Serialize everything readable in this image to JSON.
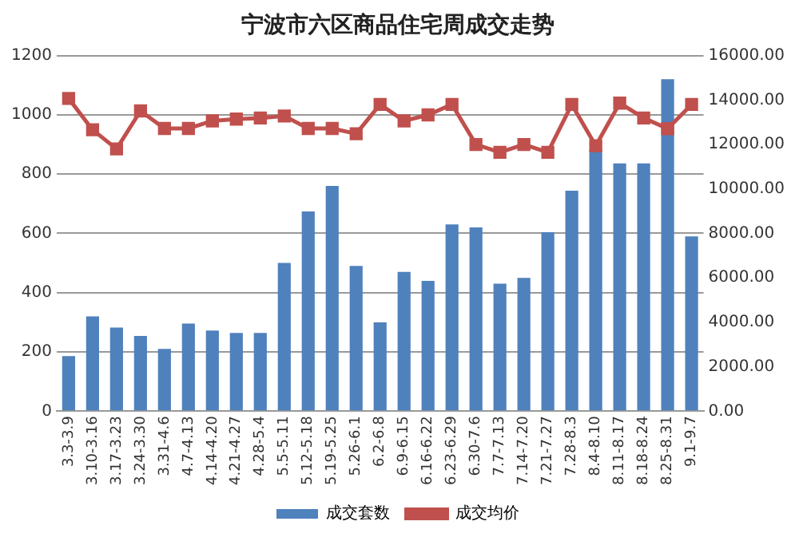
{
  "chart_data": {
    "type": "bar",
    "title": "宁波市六区商品住宅周成交走势",
    "categories": [
      "3.3-3.9",
      "3.10-3.16",
      "3.17-3.23",
      "3.24-3.30",
      "3.31-4.6",
      "4.7-4.13",
      "4.14-4.20",
      "4.21-4.27",
      "4.28-5.4",
      "5.5-5.11",
      "5.12-5.18",
      "5.19-5.25",
      "5.26-6.1",
      "6.2-6.8",
      "6.9-6.15",
      "6.16-6.22",
      "6.23-6.29",
      "6.30-7.6",
      "7.7-7.13",
      "7.14-7.20",
      "7.21-7.27",
      "7.28-8.3",
      "8.4-8.10",
      "8.11-8.17",
      "8.18-8.24",
      "8.25-8.31",
      "9.1-9.7"
    ],
    "series": [
      {
        "name": "成交套数",
        "color": "#4f81bd",
        "values": [
          186,
          320,
          282,
          254,
          210,
          296,
          272,
          264,
          264,
          500,
          674,
          760,
          490,
          300,
          470,
          440,
          630,
          620,
          430,
          450,
          604,
          744,
          880,
          836,
          836,
          1120,
          590
        ]
      },
      {
        "name": "成交均价",
        "type": "line",
        "axis": "y2",
        "color": "#c0504d",
        "values": [
          14070,
          12660,
          11800,
          13510,
          12720,
          12720,
          13060,
          13140,
          13190,
          13280,
          12720,
          12720,
          12480,
          13800,
          13060,
          13330,
          13800,
          12000,
          11650,
          12000,
          11650,
          13800,
          11940,
          13860,
          13190,
          12710,
          13800
        ]
      }
    ],
    "ylim": [
      0,
      1200
    ],
    "yticks": [
      0,
      200,
      400,
      600,
      800,
      1000,
      1200
    ],
    "y2lim": [
      0,
      16000
    ],
    "y2ticks": [
      {
        "value": 0,
        "label": "0.00"
      },
      {
        "value": 2000,
        "label": "2000.00"
      },
      {
        "value": 4000,
        "label": "4000.00"
      },
      {
        "value": 6000,
        "label": "6000.00"
      },
      {
        "value": 8000,
        "label": "8000.00"
      },
      {
        "value": 10000,
        "label": "10000.00"
      },
      {
        "value": 12000,
        "label": "12000.00"
      },
      {
        "value": 14000,
        "label": "14000.00"
      },
      {
        "value": 16000,
        "label": "16000.00"
      }
    ],
    "grid": "y",
    "legend": "bottom",
    "marker": "square",
    "line_style": "solid"
  }
}
